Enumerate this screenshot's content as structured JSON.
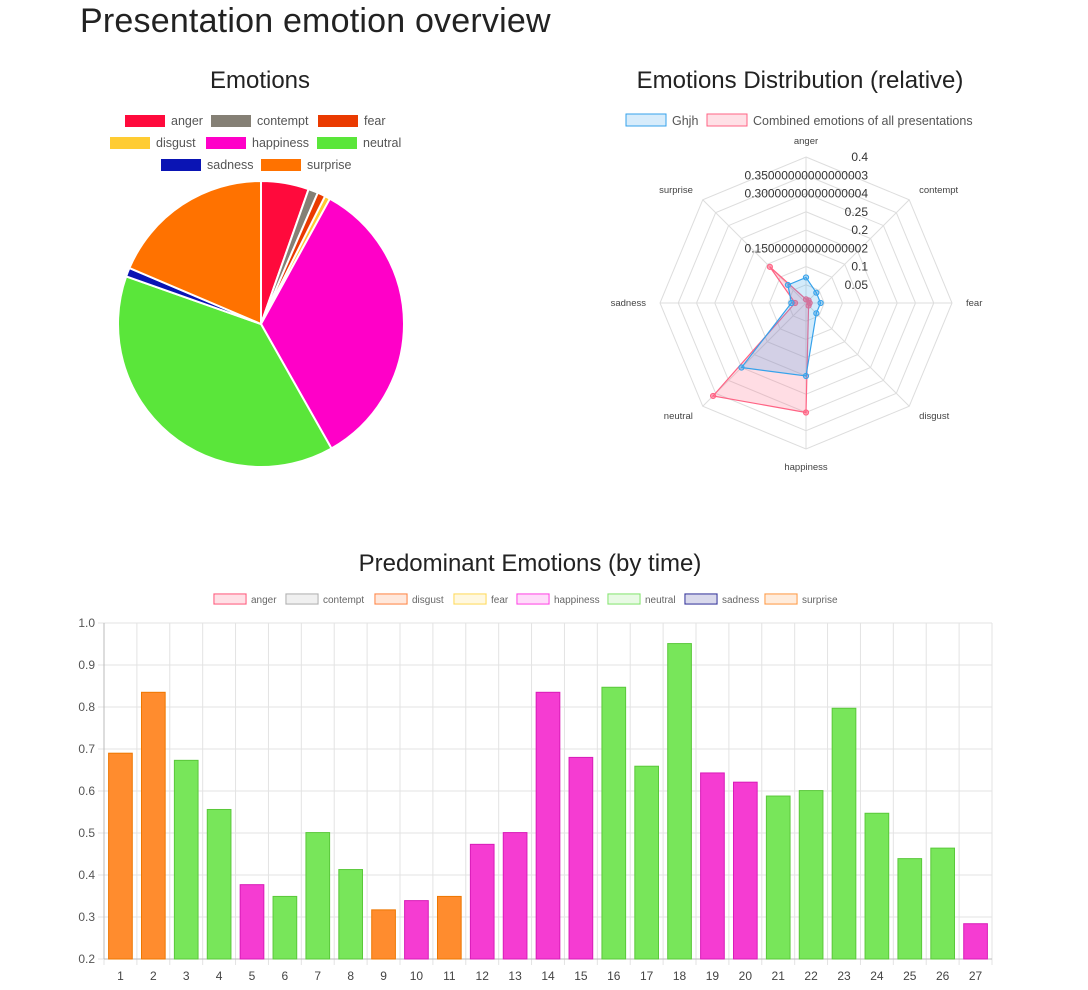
{
  "page": {
    "title": "Presentation emotion overview"
  },
  "colors": {
    "anger": "#ff0a3c",
    "contempt": "#858075",
    "fear": "#ea3a00",
    "disgust": "#ffcc33",
    "happiness": "#ff00c8",
    "neutral": "#5ae63a",
    "sadness": "#0a14b4",
    "surprise": "#ff7200"
  },
  "chart_data": [
    {
      "type": "pie",
      "title": "Emotions",
      "legend": [
        "anger",
        "contempt",
        "fear",
        "disgust",
        "happiness",
        "neutral",
        "sadness",
        "surprise"
      ],
      "legend_position": "top",
      "slices": [
        {
          "label": "anger",
          "value": 0.054
        },
        {
          "label": "contempt",
          "value": 0.011
        },
        {
          "label": "fear",
          "value": 0.009
        },
        {
          "label": "disgust",
          "value": 0.006
        },
        {
          "label": "happiness",
          "value": 0.338
        },
        {
          "label": "neutral",
          "value": 0.386
        },
        {
          "label": "sadness",
          "value": 0.01
        },
        {
          "label": "surprise",
          "value": 0.186
        }
      ]
    },
    {
      "type": "radar",
      "title": "Emotions Distribution (relative)",
      "legend_position": "top",
      "axes": [
        "anger",
        "contempt",
        "fear",
        "disgust",
        "happiness",
        "neutral",
        "sadness",
        "surprise"
      ],
      "ticks": [
        "0.4",
        "0.35000000000000003",
        "0.30000000000000004",
        "0.25",
        "0.2",
        "0.15000000000000002",
        "0.1",
        "0.05"
      ],
      "scale_max": 0.4,
      "series": [
        {
          "name": "Ghjh",
          "color": "#36a2eb",
          "values": [
            0.07,
            0.04,
            0.04,
            0.04,
            0.2,
            0.25,
            0.04,
            0.07
          ]
        },
        {
          "name": "Combined emotions of all presentations",
          "color": "#ff6384",
          "values": [
            0.01,
            0.01,
            0.01,
            0.01,
            0.3,
            0.36,
            0.03,
            0.14
          ]
        }
      ]
    },
    {
      "type": "bar",
      "title": "Predominant Emotions (by time)",
      "legend": [
        {
          "label": "anger",
          "color": "#ff6384"
        },
        {
          "label": "contempt",
          "color": "#b4b4b4"
        },
        {
          "label": "disgust",
          "color": "#ff8c50"
        },
        {
          "label": "fear",
          "color": "#ffdc64"
        },
        {
          "label": "happiness",
          "color": "#ff50e6"
        },
        {
          "label": "neutral",
          "color": "#8ce678"
        },
        {
          "label": "sadness",
          "color": "#4040a0"
        },
        {
          "label": "surprise",
          "color": "#ffa050"
        }
      ],
      "legend_position": "top",
      "ylim": [
        0.2,
        1.0
      ],
      "yticks": [
        "1.0",
        "0.9",
        "0.8",
        "0.7",
        "0.6",
        "0.5",
        "0.4",
        "0.3",
        "0.2"
      ],
      "grid": true,
      "categories": [
        "1",
        "2",
        "3",
        "4",
        "5",
        "6",
        "7",
        "8",
        "9",
        "10",
        "11",
        "12",
        "13",
        "14",
        "15",
        "16",
        "17",
        "18",
        "19",
        "20",
        "21",
        "22",
        "23",
        "24",
        "25",
        "26",
        "27"
      ],
      "values": [
        0.69,
        0.835,
        0.673,
        0.556,
        0.377,
        0.349,
        0.501,
        0.413,
        0.317,
        0.339,
        0.349,
        0.473,
        0.501,
        0.835,
        0.68,
        0.847,
        0.659,
        0.951,
        0.643,
        0.621,
        0.588,
        0.601,
        0.797,
        0.547,
        0.439,
        0.464,
        0.284
      ],
      "emotions": [
        "surprise",
        "surprise",
        "neutral",
        "neutral",
        "happiness",
        "neutral",
        "neutral",
        "neutral",
        "surprise",
        "happiness",
        "surprise",
        "happiness",
        "happiness",
        "happiness",
        "happiness",
        "neutral",
        "neutral",
        "neutral",
        "happiness",
        "happiness",
        "neutral",
        "neutral",
        "neutral",
        "neutral",
        "neutral",
        "neutral",
        "happiness"
      ],
      "bar_colors": {
        "surprise": "#ff8c2e",
        "neutral": "#78e65a",
        "happiness": "#f53cd2"
      },
      "bar_borders": {
        "surprise": "#ee7700",
        "neutral": "#5ac83a",
        "happiness": "#d81cb8"
      }
    }
  ]
}
